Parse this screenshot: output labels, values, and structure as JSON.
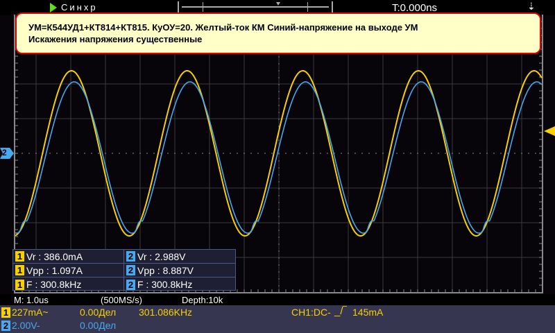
{
  "header": {
    "run_state_icon": "play-triangle-icon",
    "trigger_status": "Синхр",
    "time_offset": "T:0.000ns",
    "usb_icon": "usb-icon"
  },
  "note": {
    "line1": "УМ=К544УД1+КТ814+КТ815. КуОУ=20. Желтый-ток КМ Синий-напряжение на выходе УМ",
    "line2": "Искажения напряжения существенные"
  },
  "colors": {
    "ch1": "#f7d000",
    "ch2": "#48a8f0",
    "note_bg": "#ffffc8",
    "note_border": "#e00000"
  },
  "markers": {
    "ch2_marker": "2"
  },
  "measurements": [
    {
      "ch1": {
        "ch": "1",
        "text": "Vr : 386.0mA"
      },
      "ch2": {
        "ch": "2",
        "text": "Vr : 2.988V"
      }
    },
    {
      "ch1": {
        "ch": "1",
        "text": "Vpp : 1.097A"
      },
      "ch2": {
        "ch": "2",
        "text": "Vpp : 8.887V"
      }
    },
    {
      "ch1": {
        "ch": "1",
        "text": "F : 300.8kHz"
      },
      "ch2": {
        "ch": "2",
        "text": "F : 300.8kHz"
      }
    }
  ],
  "acquisition": {
    "timebase": "M: 1.0us",
    "sample_rate": "(500MS/s)",
    "depth": "Depth:10k"
  },
  "channels": {
    "ch1": {
      "num": "1",
      "scale": "227mA~",
      "offset": "0.00Дел",
      "frequency": "301.086KHz",
      "trigger": "CH1:DC-",
      "trigger_edge_icon": "rising-edge-icon",
      "trigger_level": "145mA"
    },
    "ch2": {
      "num": "2",
      "scale": "2.00V-",
      "offset": "0.00Дел"
    }
  }
}
